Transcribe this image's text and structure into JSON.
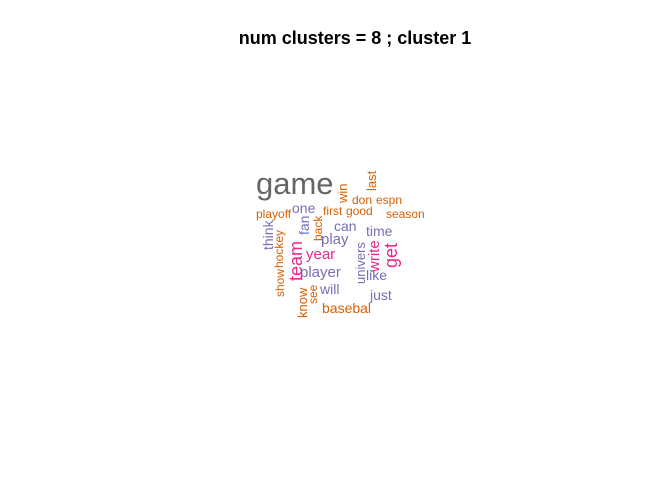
{
  "title": "num clusters  =  8 ; cluster 1",
  "colors": {
    "gray": "#666666",
    "orange": "#d95f02",
    "purple": "#7570b3",
    "magenta": "#e7298a"
  },
  "words": {
    "game": "game",
    "win": "win",
    "last": "last",
    "don": "don",
    "espn": "espn",
    "playoff": "playoff",
    "one": "one",
    "first": "first",
    "good": "good",
    "season": "season",
    "think": "think",
    "fan": "fan",
    "back": "back",
    "can": "can",
    "time": "time",
    "team": "team",
    "play": "play",
    "year": "year",
    "univers": "univers",
    "write": "write",
    "get": "get",
    "hockey": "hockey",
    "show": "show",
    "player": "player",
    "like": "like",
    "will": "will",
    "see": "see",
    "know": "know",
    "just": "just",
    "basebal": "basebal"
  }
}
